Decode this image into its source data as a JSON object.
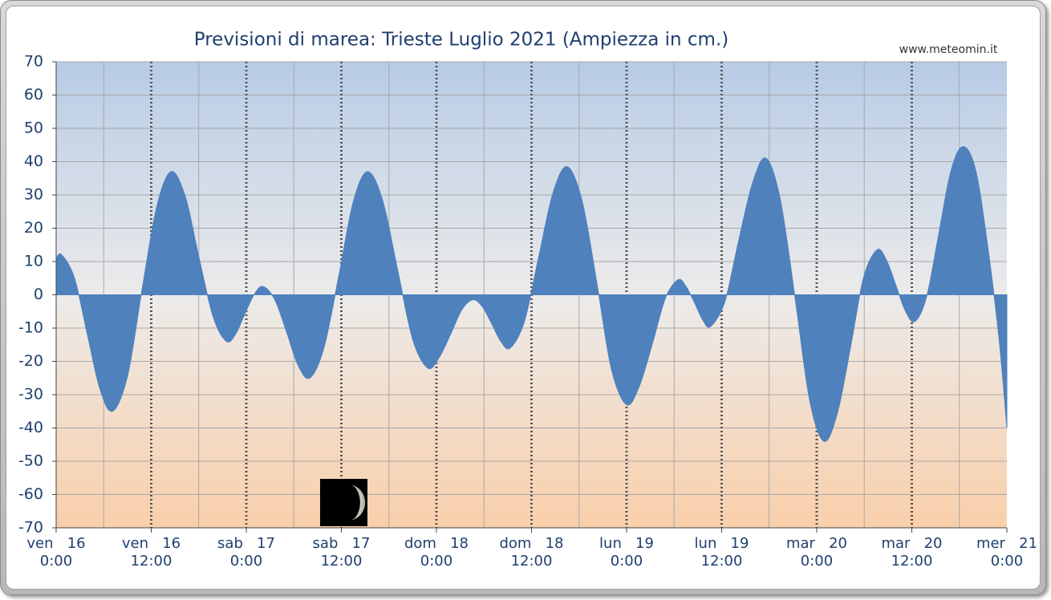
{
  "chart_data": {
    "type": "area",
    "title": "Previsioni di marea: Trieste Luglio 2021 (Ampiezza in cm.)",
    "source": "www.meteomin.it",
    "xlim": [
      0,
      120
    ],
    "xticks": [
      {
        "value": 0,
        "label": "ven   16\n0:00"
      },
      {
        "value": 12,
        "label": "ven   16\n12:00"
      },
      {
        "value": 24,
        "label": "sab   17\n0:00"
      },
      {
        "value": 36,
        "label": "sab   17\n12:00"
      },
      {
        "value": 48,
        "label": "dom   18\n0:00"
      },
      {
        "value": 60,
        "label": "dom   18\n12:00"
      },
      {
        "value": 72,
        "label": "lun   19\n0:00"
      },
      {
        "value": 84,
        "label": "lun   19\n12:00"
      },
      {
        "value": 96,
        "label": "mar   20\n0:00"
      },
      {
        "value": 108,
        "label": "mar   20\n12:00"
      },
      {
        "value": 120,
        "label": "mer   21\n0:00"
      }
    ],
    "ylim": [
      -70,
      70
    ],
    "yticks": [
      70,
      60,
      50,
      40,
      30,
      20,
      10,
      0,
      -10,
      -20,
      -30,
      -40,
      -50,
      -60,
      -70
    ],
    "grid": true,
    "series": [
      {
        "name": "Ampiezza",
        "color": "#4f81bd",
        "x": [
          0,
          0.7,
          2.3,
          3.9,
          5.5,
          7.1,
          9.0,
          10.8,
          12.7,
          14.5,
          16.3,
          18.0,
          19.8,
          21.5,
          22.7,
          23.8,
          25.0,
          26.1,
          27.6,
          29.1,
          30.5,
          32,
          33.8,
          35.7,
          37.5,
          39.3,
          41.2,
          43.1,
          45.0,
          46.9,
          48.3,
          49.8,
          51.2,
          52.6,
          53.8,
          55.0,
          56.1,
          57.3,
          59.1,
          60.9,
          62.7,
          64.5,
          66.4,
          68.3,
          70.1,
          72,
          73.6,
          75.3,
          76.9,
          78.5,
          79.5,
          80.6,
          81.6,
          82.6,
          84.4,
          86.1,
          87.9,
          89.6,
          91.4,
          93.3,
          95.1,
          96.9,
          98.6,
          100.3,
          101.9,
          103.6,
          104.8,
          106.0,
          107.2,
          108.4,
          109.9,
          111.4,
          112.9,
          114.4,
          116,
          117.5,
          119,
          120
        ],
        "values": [
          11,
          12,
          5.1,
          -11.5,
          -28.1,
          -35,
          -24.5,
          1,
          26.5,
          37,
          29.5,
          11.5,
          -6.5,
          -14,
          -11.6,
          -5.8,
          0.1,
          2.5,
          -1.5,
          -11.3,
          -21,
          -25,
          -15.9,
          6,
          27.9,
          37,
          28.4,
          7.5,
          -13.4,
          -22,
          -19,
          -11.8,
          -4.5,
          -1.5,
          -3.6,
          -8.8,
          -13.9,
          -16,
          -8,
          11.3,
          30.5,
          38.5,
          28,
          2.8,
          -22.5,
          -33,
          -27.5,
          -14.3,
          -1,
          4.5,
          2.5,
          -2.5,
          -7.5,
          -9.5,
          -2.1,
          15.8,
          33.6,
          41,
          28.6,
          -1.5,
          -31.6,
          -44,
          -35.6,
          -15.3,
          5.1,
          13.5,
          10.4,
          2.8,
          -4.9,
          -8,
          -0.3,
          18.3,
          36.8,
          44.5,
          38,
          16,
          -13,
          -40
        ]
      }
    ]
  }
}
